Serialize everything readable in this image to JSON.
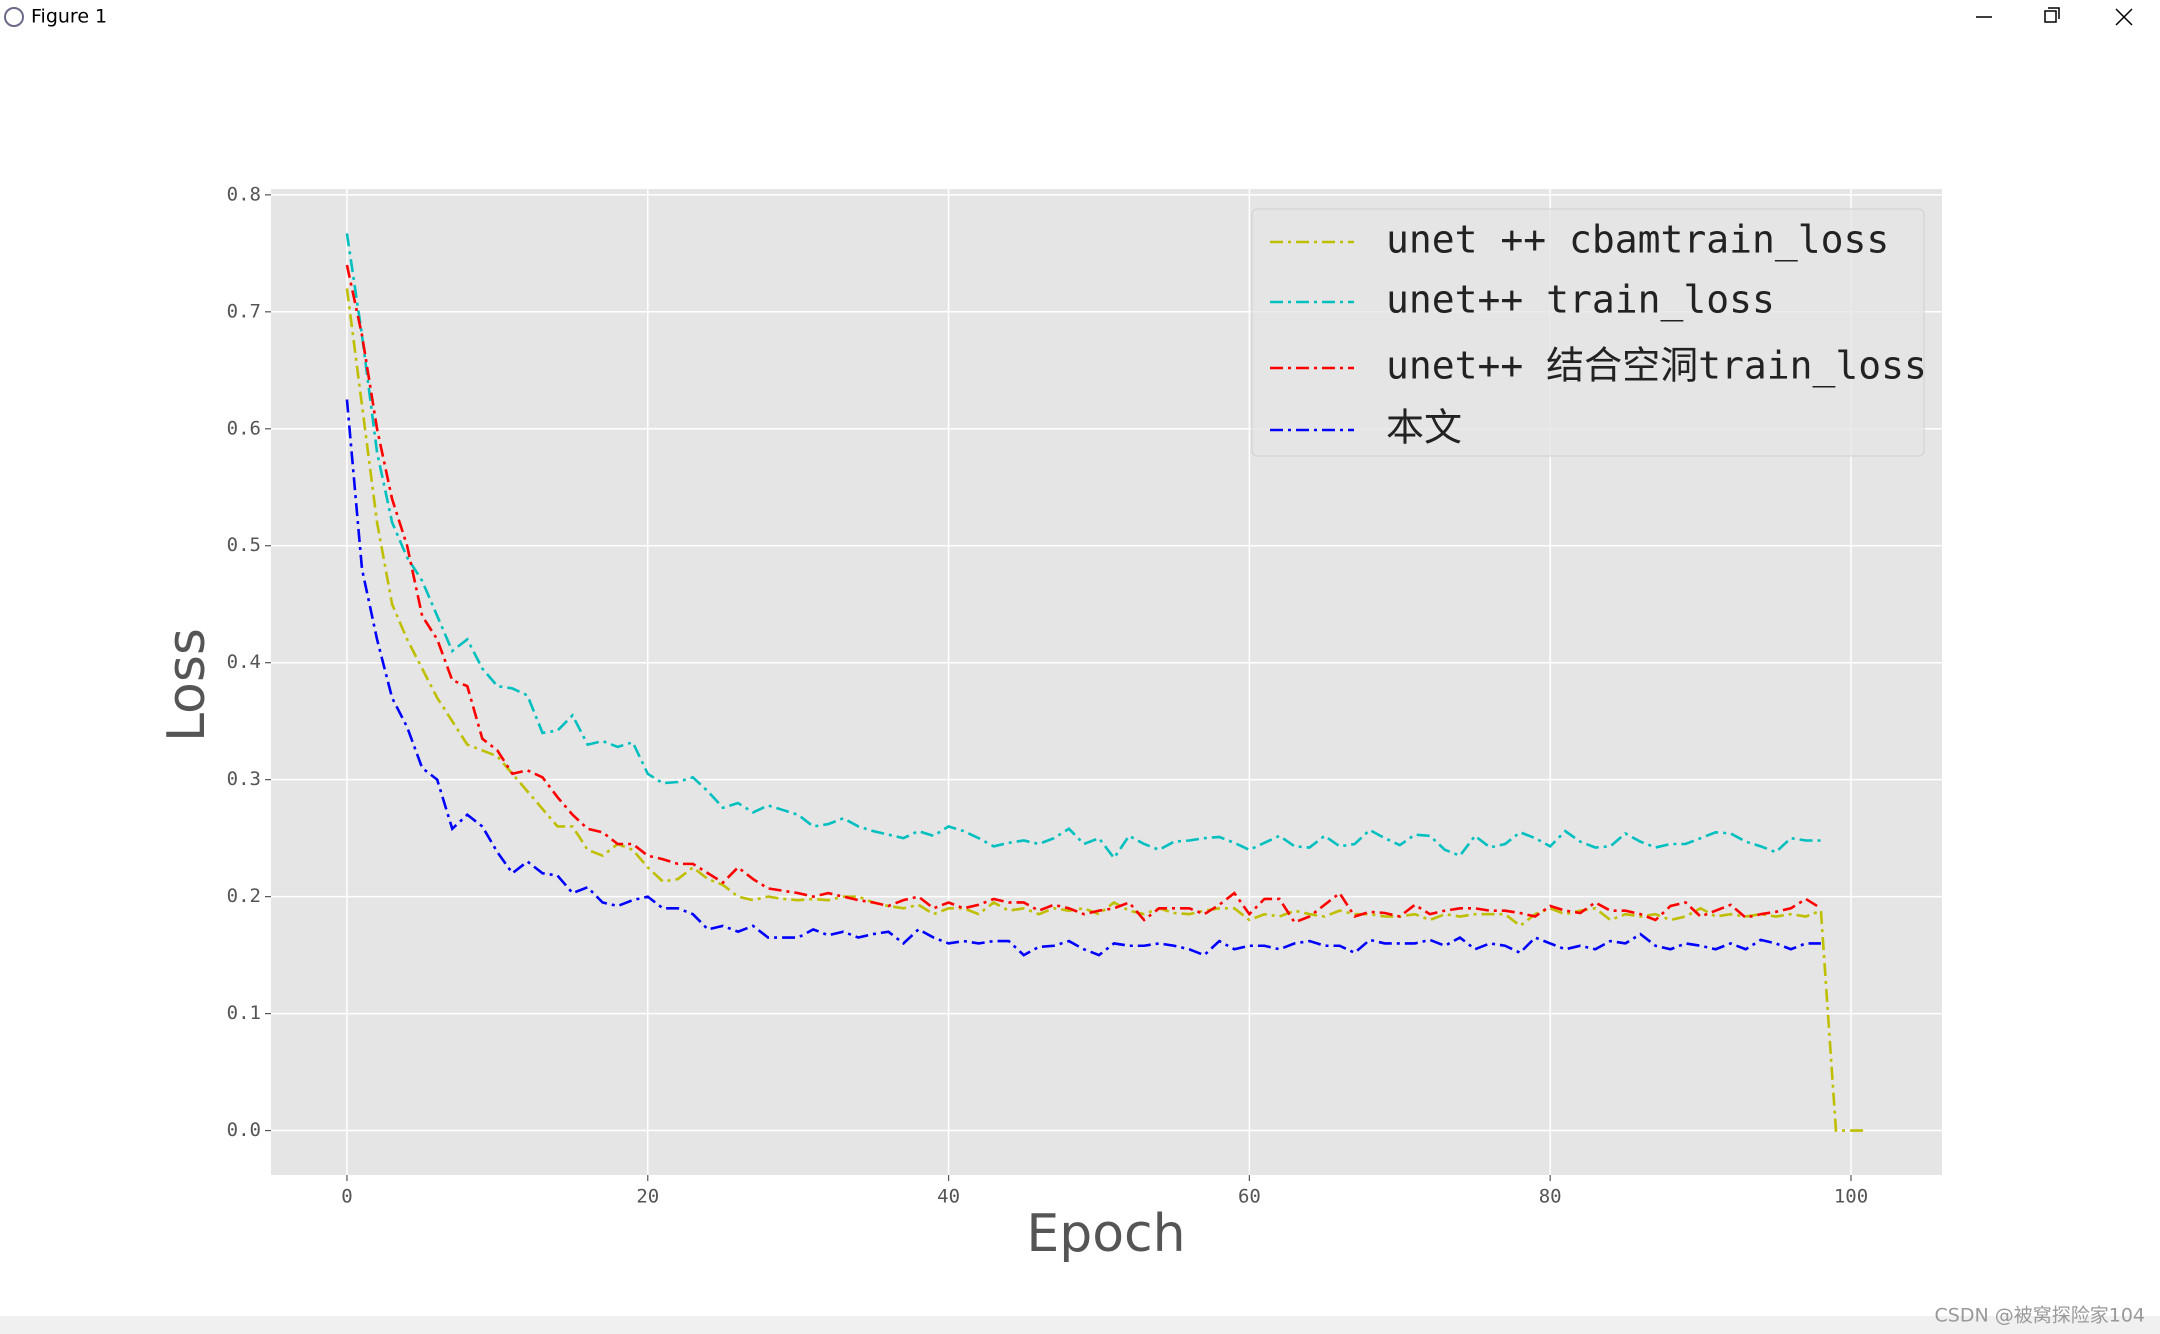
{
  "window_title": "Figure 1",
  "watermark": "CSDN @被窝探险家104",
  "chart_data": {
    "type": "line",
    "xlabel": "Epoch",
    "ylabel": "Loss",
    "xlim": [
      -5.05,
      106.05
    ],
    "ylim": [
      -0.038,
      0.805
    ],
    "xticks": [
      0,
      20,
      40,
      60,
      80,
      100
    ],
    "yticks": [
      {
        "value": 0,
        "label": "0.0"
      },
      0.1,
      0.2,
      0.3,
      0.4,
      0.5,
      0.6,
      0.7,
      0.8
    ],
    "grid": true,
    "legend": "upper right",
    "x": [
      0,
      1,
      2,
      3,
      4,
      5,
      6,
      7,
      8,
      9,
      10,
      11,
      12,
      13,
      14,
      15,
      16,
      17,
      18,
      19,
      20,
      21,
      22,
      23,
      24,
      25,
      26,
      27,
      28,
      29,
      30,
      31,
      32,
      33,
      34,
      35,
      36,
      37,
      38,
      39,
      40,
      41,
      42,
      43,
      44,
      45,
      46,
      47,
      48,
      49,
      50,
      51,
      52,
      53,
      54,
      55,
      56,
      57,
      58,
      59,
      60,
      61,
      62,
      63,
      64,
      65,
      66,
      67,
      68,
      69,
      70,
      71,
      72,
      73,
      74,
      75,
      76,
      77,
      78,
      79,
      80,
      81,
      82,
      83,
      84,
      85,
      86,
      87,
      88,
      89,
      90,
      91,
      92,
      93,
      94,
      95,
      96,
      97,
      98,
      99,
      100,
      101
    ],
    "series": [
      {
        "name": "unet ++ cbamtrain_loss",
        "color": "#bfbf00",
        "values": [
          0.72,
          0.62,
          0.52,
          0.45,
          0.42,
          0.395,
          0.37,
          0.35,
          0.33,
          0.325,
          0.32,
          0.305,
          0.29,
          0.275,
          0.26,
          0.26,
          0.24,
          0.235,
          0.245,
          0.24,
          0.225,
          0.213,
          0.215,
          0.225,
          0.215,
          0.21,
          0.2,
          0.197,
          0.2,
          0.198,
          0.197,
          0.198,
          0.197,
          0.2,
          0.2,
          0.195,
          0.192,
          0.19,
          0.193,
          0.185,
          0.19,
          0.19,
          0.185,
          0.195,
          0.188,
          0.19,
          0.185,
          0.19,
          0.188,
          0.19,
          0.185,
          0.195,
          0.188,
          0.185,
          0.19,
          0.186,
          0.185,
          0.188,
          0.19,
          0.19,
          0.18,
          0.185,
          0.183,
          0.188,
          0.185,
          0.183,
          0.188,
          0.185,
          0.185,
          0.183,
          0.183,
          0.185,
          0.18,
          0.185,
          0.183,
          0.185,
          0.185,
          0.185,
          0.175,
          0.185,
          0.19,
          0.185,
          0.188,
          0.19,
          0.18,
          0.185,
          0.183,
          0.185,
          0.18,
          0.183,
          0.19,
          0.183,
          0.185,
          0.183,
          0.185,
          0.183,
          0.185,
          0.183,
          0.188,
          0,
          0,
          0
        ]
      },
      {
        "name": "unet++ train_loss",
        "color": "#00bfbf",
        "values": [
          0.767,
          0.68,
          0.58,
          0.52,
          0.49,
          0.47,
          0.44,
          0.41,
          0.42,
          0.395,
          0.38,
          0.378,
          0.372,
          0.34,
          0.342,
          0.355,
          0.33,
          0.333,
          0.328,
          0.332,
          0.305,
          0.297,
          0.298,
          0.302,
          0.29,
          0.276,
          0.28,
          0.272,
          0.278,
          0.274,
          0.27,
          0.26,
          0.262,
          0.267,
          0.26,
          0.256,
          0.253,
          0.25,
          0.256,
          0.252,
          0.26,
          0.256,
          0.25,
          0.243,
          0.246,
          0.248,
          0.245,
          0.25,
          0.258,
          0.245,
          0.25,
          0.233,
          0.252,
          0.245,
          0.24,
          0.247,
          0.248,
          0.25,
          0.251,
          0.246,
          0.24,
          0.246,
          0.252,
          0.243,
          0.242,
          0.252,
          0.243,
          0.245,
          0.257,
          0.25,
          0.244,
          0.253,
          0.252,
          0.24,
          0.235,
          0.252,
          0.242,
          0.245,
          0.255,
          0.25,
          0.243,
          0.256,
          0.247,
          0.242,
          0.243,
          0.254,
          0.247,
          0.242,
          0.245,
          0.245,
          0.25,
          0.255,
          0.254,
          0.247,
          0.243,
          0.238,
          0.25,
          0.248,
          0.248,
          null,
          null,
          null
        ]
      },
      {
        "name": "unet++ 结合空洞train_loss",
        "color": "#ff0000",
        "values": [
          0.74,
          0.68,
          0.6,
          0.54,
          0.5,
          0.44,
          0.42,
          0.385,
          0.38,
          0.335,
          0.325,
          0.305,
          0.308,
          0.302,
          0.285,
          0.27,
          0.258,
          0.255,
          0.245,
          0.245,
          0.235,
          0.232,
          0.228,
          0.228,
          0.22,
          0.212,
          0.225,
          0.215,
          0.207,
          0.205,
          0.203,
          0.2,
          0.203,
          0.2,
          0.197,
          0.195,
          0.192,
          0.197,
          0.2,
          0.19,
          0.195,
          0.19,
          0.193,
          0.198,
          0.195,
          0.195,
          0.188,
          0.193,
          0.19,
          0.185,
          0.188,
          0.19,
          0.195,
          0.18,
          0.19,
          0.19,
          0.19,
          0.185,
          0.193,
          0.203,
          0.185,
          0.198,
          0.198,
          0.178,
          0.183,
          0.193,
          0.203,
          0.183,
          0.187,
          0.186,
          0.183,
          0.193,
          0.185,
          0.188,
          0.19,
          0.19,
          0.188,
          0.188,
          0.186,
          0.183,
          0.192,
          0.188,
          0.186,
          0.195,
          0.188,
          0.188,
          0.185,
          0.18,
          0.192,
          0.195,
          0.183,
          0.188,
          0.193,
          0.182,
          0.185,
          0.187,
          0.19,
          0.198,
          0.19,
          null,
          null,
          null
        ]
      },
      {
        "name": "本文",
        "color": "#0000ff",
        "values": [
          0.625,
          0.48,
          0.42,
          0.37,
          0.345,
          0.31,
          0.3,
          0.258,
          0.27,
          0.26,
          0.238,
          0.22,
          0.23,
          0.22,
          0.218,
          0.203,
          0.208,
          0.195,
          0.192,
          0.197,
          0.2,
          0.19,
          0.19,
          0.185,
          0.172,
          0.175,
          0.17,
          0.175,
          0.165,
          0.165,
          0.165,
          0.172,
          0.167,
          0.17,
          0.165,
          0.168,
          0.17,
          0.16,
          0.172,
          0.165,
          0.16,
          0.162,
          0.16,
          0.162,
          0.162,
          0.15,
          0.157,
          0.158,
          0.162,
          0.155,
          0.15,
          0.16,
          0.158,
          0.158,
          0.16,
          0.158,
          0.155,
          0.15,
          0.162,
          0.155,
          0.158,
          0.158,
          0.155,
          0.16,
          0.162,
          0.158,
          0.158,
          0.152,
          0.163,
          0.16,
          0.16,
          0.16,
          0.163,
          0.158,
          0.165,
          0.155,
          0.16,
          0.158,
          0.152,
          0.165,
          0.16,
          0.155,
          0.158,
          0.155,
          0.162,
          0.16,
          0.168,
          0.158,
          0.155,
          0.16,
          0.158,
          0.155,
          0.16,
          0.155,
          0.163,
          0.16,
          0.155,
          0.16,
          0.16,
          null,
          null,
          null
        ]
      }
    ]
  }
}
